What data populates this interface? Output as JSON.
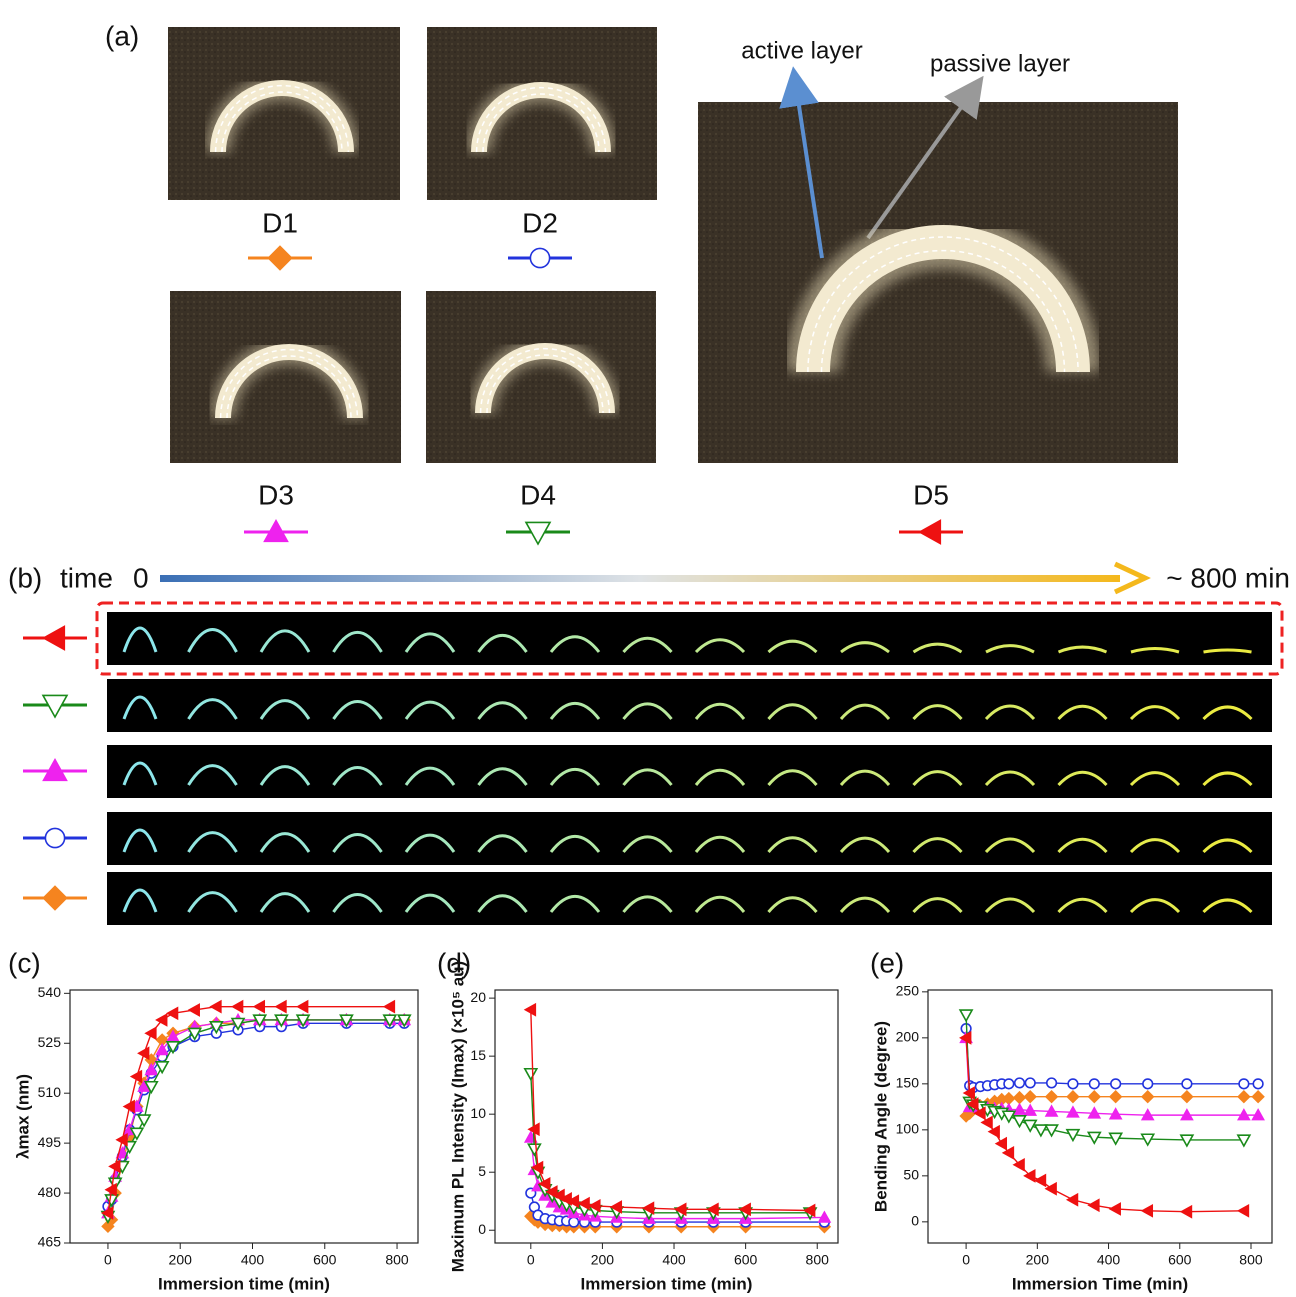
{
  "panel_a": {
    "label": "(a)",
    "samples": [
      "D1",
      "D2",
      "D3",
      "D4",
      "D5"
    ],
    "annotations": [
      "active layer",
      "passive layer"
    ]
  },
  "panel_b": {
    "label": "(b)",
    "time_label": "time",
    "start_label": "0",
    "end_label": "~ 800 min"
  },
  "chart_data": [
    {
      "type": "line",
      "label": "(c)",
      "xlabel": "Immersion time (min)",
      "ylabel": "λmax (nm)",
      "xlim": [
        -105,
        858
      ],
      "xticks": [
        0,
        200,
        400,
        600,
        800
      ],
      "ylim": [
        465,
        541
      ],
      "yticks": [
        465,
        480,
        495,
        510,
        525,
        540
      ],
      "series": [
        {
          "color": "#f5841f",
          "marker": "diamond",
          "x": [
            0,
            10,
            20,
            40,
            60,
            80,
            100,
            120,
            150,
            180,
            240,
            300,
            360,
            420,
            480,
            540,
            660,
            780,
            820
          ],
          "values": [
            470,
            472,
            480,
            489,
            497,
            506,
            513,
            520,
            526,
            528,
            530,
            531,
            531,
            532,
            532,
            532,
            532,
            532,
            532
          ]
        },
        {
          "color": "#2233dd",
          "marker": "circle",
          "x": [
            0,
            10,
            20,
            40,
            60,
            80,
            100,
            120,
            150,
            180,
            240,
            300,
            360,
            420,
            480,
            540,
            660,
            780,
            820
          ],
          "values": [
            476,
            478,
            484,
            491,
            499,
            505,
            511,
            516,
            521,
            524,
            527,
            528,
            529,
            530,
            530,
            531,
            531,
            531,
            531
          ]
        },
        {
          "color": "#ee22ee",
          "marker": "triangle-up",
          "x": [
            0,
            10,
            20,
            40,
            60,
            80,
            100,
            120,
            150,
            180,
            240,
            300,
            360,
            420,
            480,
            540,
            660,
            780,
            820
          ],
          "values": [
            474,
            479,
            485,
            492,
            499,
            506,
            512,
            517,
            523,
            527,
            530,
            531,
            532,
            532,
            532,
            532,
            532,
            532,
            532
          ]
        },
        {
          "color": "#1a8a1a",
          "marker": "triangle-down",
          "x": [
            0,
            10,
            20,
            40,
            60,
            80,
            100,
            120,
            150,
            180,
            240,
            300,
            360,
            420,
            480,
            540,
            660,
            780,
            820
          ],
          "values": [
            473,
            478,
            483,
            488,
            494,
            498,
            502,
            512,
            518,
            524,
            528,
            530,
            531,
            532,
            532,
            532,
            532,
            532,
            532
          ]
        },
        {
          "color": "#ee1111",
          "marker": "triangle-left",
          "x": [
            0,
            10,
            20,
            40,
            60,
            80,
            100,
            120,
            150,
            180,
            240,
            300,
            360,
            420,
            480,
            540,
            780
          ],
          "values": [
            474,
            481,
            488,
            496,
            506,
            515,
            522,
            528,
            532,
            534,
            535,
            536,
            536,
            536,
            536,
            536,
            536
          ]
        }
      ]
    },
    {
      "type": "line",
      "label": "(d)",
      "xlabel": "Immersion time (min)",
      "ylabel": "Maximum PL Intensity (Imax) (×10⁵ au)",
      "xlim": [
        -100,
        858
      ],
      "xticks": [
        0,
        200,
        400,
        600,
        800
      ],
      "ylim": [
        -1.1,
        20.7
      ],
      "yticks": [
        0,
        5,
        10,
        15,
        20
      ],
      "series": [
        {
          "color": "#f5841f",
          "marker": "diamond",
          "x": [
            0,
            10,
            20,
            40,
            60,
            80,
            100,
            120,
            150,
            180,
            240,
            330,
            420,
            510,
            600,
            820
          ],
          "values": [
            1.2,
            0.9,
            0.7,
            0.5,
            0.4,
            0.4,
            0.3,
            0.3,
            0.3,
            0.3,
            0.3,
            0.3,
            0.3,
            0.3,
            0.3,
            0.3
          ]
        },
        {
          "color": "#2233dd",
          "marker": "circle",
          "x": [
            0,
            10,
            20,
            40,
            60,
            80,
            100,
            120,
            150,
            180,
            240,
            330,
            420,
            510,
            600,
            820
          ],
          "values": [
            3.2,
            2,
            1.3,
            1,
            0.9,
            0.8,
            0.8,
            0.7,
            0.7,
            0.7,
            0.7,
            0.7,
            0.7,
            0.7,
            0.7,
            0.7
          ]
        },
        {
          "color": "#ee22ee",
          "marker": "triangle-up",
          "x": [
            0,
            10,
            20,
            40,
            60,
            80,
            100,
            120,
            150,
            180,
            240,
            330,
            420,
            510,
            600,
            820
          ],
          "values": [
            8,
            5.2,
            3.8,
            3,
            2.4,
            2,
            1.8,
            1.5,
            1.3,
            1.2,
            1.1,
            1,
            1,
            1,
            1,
            1.1
          ]
        },
        {
          "color": "#1a8a1a",
          "marker": "triangle-down",
          "x": [
            0,
            10,
            20,
            40,
            60,
            80,
            100,
            120,
            150,
            180,
            240,
            330,
            420,
            510,
            600,
            780
          ],
          "values": [
            13.5,
            7,
            5,
            3.5,
            3,
            2.5,
            2.2,
            2,
            1.8,
            1.7,
            1.6,
            1.5,
            1.5,
            1.5,
            1.5,
            1.5
          ]
        },
        {
          "color": "#ee1111",
          "marker": "triangle-left",
          "x": [
            0,
            10,
            20,
            40,
            60,
            80,
            100,
            120,
            150,
            180,
            240,
            330,
            420,
            510,
            600,
            780
          ],
          "values": [
            19,
            8.7,
            5.4,
            4,
            3.3,
            3,
            2.7,
            2.5,
            2.3,
            2.1,
            2,
            1.9,
            1.8,
            1.8,
            1.8,
            1.7
          ]
        }
      ]
    },
    {
      "type": "line",
      "label": "(e)",
      "xlabel": "Immersion Time (min)",
      "ylabel": "Bending Angle (degree)",
      "xlim": [
        -107,
        859
      ],
      "xticks": [
        0,
        200,
        400,
        600,
        800
      ],
      "ylim": [
        -23,
        252
      ],
      "yticks": [
        0,
        50,
        100,
        150,
        200,
        250
      ],
      "series": [
        {
          "color": "#f5841f",
          "marker": "diamond",
          "x": [
            0,
            10,
            20,
            40,
            60,
            80,
            100,
            120,
            150,
            180,
            240,
            300,
            360,
            420,
            510,
            620,
            780,
            820
          ],
          "values": [
            115,
            118,
            122,
            126,
            128,
            131,
            133,
            134,
            135,
            136,
            136,
            136,
            136,
            136,
            136,
            136,
            136,
            136
          ]
        },
        {
          "color": "#2233dd",
          "marker": "circle",
          "x": [
            0,
            10,
            20,
            40,
            60,
            80,
            100,
            120,
            150,
            180,
            240,
            300,
            360,
            420,
            510,
            620,
            780,
            820
          ],
          "values": [
            210,
            148,
            146,
            147,
            148,
            149,
            150,
            150,
            151,
            151,
            151,
            150,
            150,
            150,
            150,
            150,
            150,
            150
          ]
        },
        {
          "color": "#ee22ee",
          "marker": "triangle-up",
          "x": [
            0,
            10,
            20,
            40,
            60,
            80,
            100,
            120,
            150,
            180,
            240,
            300,
            360,
            420,
            510,
            620,
            780,
            820
          ],
          "values": [
            200,
            125,
            125,
            124,
            124,
            123,
            123,
            122,
            122,
            121,
            120,
            119,
            118,
            117,
            116,
            116,
            116,
            116
          ]
        },
        {
          "color": "#1a8a1a",
          "marker": "triangle-down",
          "x": [
            0,
            10,
            20,
            40,
            60,
            80,
            100,
            120,
            150,
            180,
            210,
            240,
            300,
            360,
            420,
            510,
            620,
            780
          ],
          "values": [
            225,
            130,
            127,
            125,
            122,
            120,
            118,
            115,
            110,
            105,
            100,
            100,
            95,
            92,
            91,
            90,
            89,
            89
          ]
        },
        {
          "color": "#ee1111",
          "marker": "triangle-left",
          "x": [
            0,
            10,
            20,
            40,
            60,
            80,
            100,
            120,
            150,
            180,
            210,
            240,
            300,
            360,
            420,
            510,
            620,
            780
          ],
          "values": [
            200,
            140,
            128,
            118,
            108,
            98,
            85,
            75,
            62,
            50,
            45,
            36,
            24,
            18,
            14,
            12,
            11,
            12
          ]
        }
      ]
    }
  ]
}
